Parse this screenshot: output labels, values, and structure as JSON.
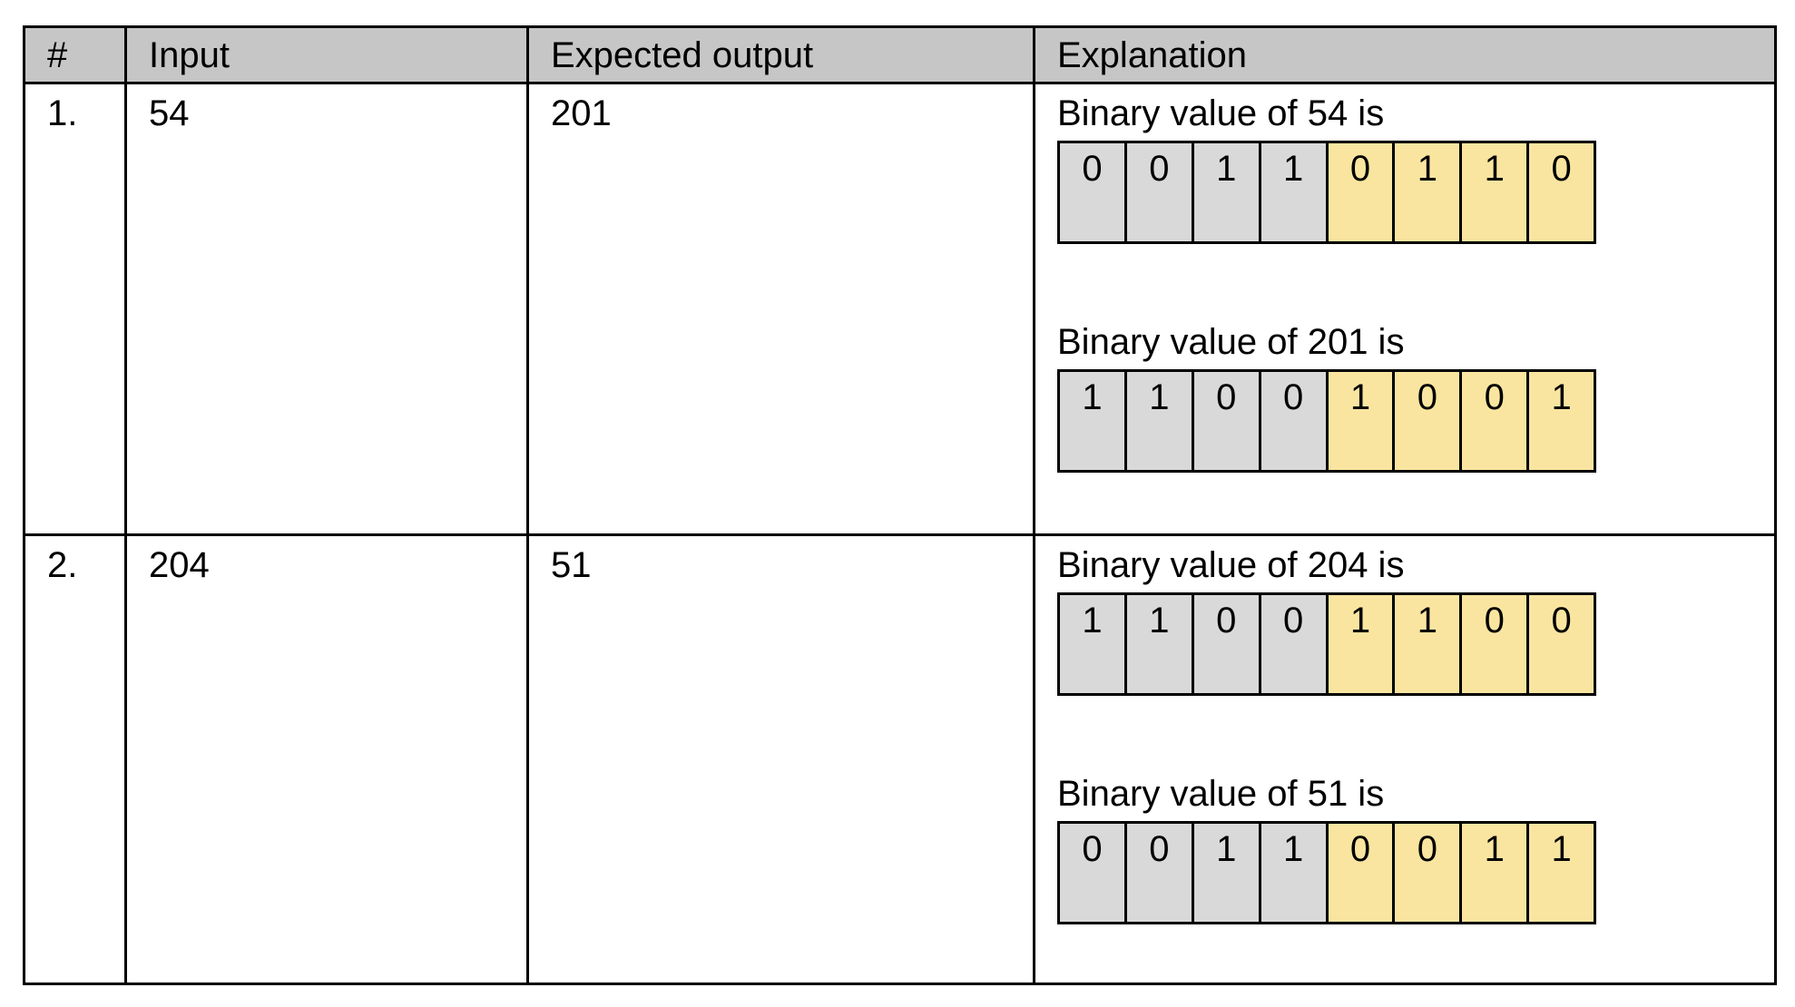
{
  "header": {
    "num": "#",
    "input": "Input",
    "expected": "Expected output",
    "explanation": "Explanation"
  },
  "rows": [
    {
      "num": "1.",
      "input": "54",
      "expected": "201",
      "explanations": [
        {
          "label": "Binary value of 54 is",
          "bits": [
            "0",
            "0",
            "1",
            "1",
            "0",
            "1",
            "1",
            "0"
          ]
        },
        {
          "label": "Binary value of 201 is",
          "bits": [
            "1",
            "1",
            "0",
            "0",
            "1",
            "0",
            "0",
            "1"
          ]
        }
      ]
    },
    {
      "num": "2.",
      "input": "204",
      "expected": "51",
      "explanations": [
        {
          "label": "Binary value of 204 is",
          "bits": [
            "1",
            "1",
            "0",
            "0",
            "1",
            "1",
            "0",
            "0"
          ]
        },
        {
          "label": "Binary value of 51 is",
          "bits": [
            "0",
            "0",
            "1",
            "1",
            "0",
            "0",
            "1",
            "1"
          ]
        }
      ]
    }
  ],
  "colors": {
    "header_bg": "#c6c6c6",
    "high_nibble_bg": "#d9d9d9",
    "low_nibble_bg": "#fae5a0",
    "border": "#000000"
  }
}
